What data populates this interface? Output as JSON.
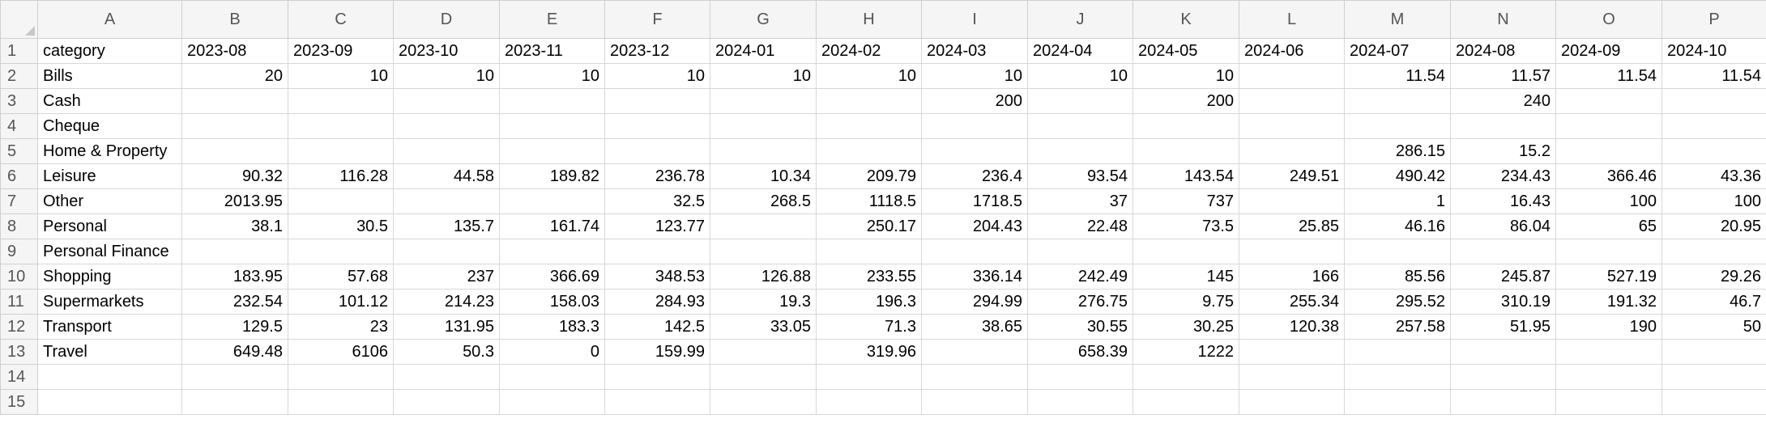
{
  "columns": [
    "A",
    "B",
    "C",
    "D",
    "E",
    "F",
    "G",
    "H",
    "I",
    "J",
    "K",
    "L",
    "M",
    "N",
    "O",
    "P"
  ],
  "row_numbers": [
    "1",
    "2",
    "3",
    "4",
    "5",
    "6",
    "7",
    "8",
    "9",
    "10",
    "11",
    "12",
    "13",
    "14",
    "15"
  ],
  "rows": [
    [
      "category",
      "2023-08",
      "2023-09",
      "2023-10",
      "2023-11",
      "2023-12",
      "2024-01",
      "2024-02",
      "2024-03",
      "2024-04",
      "2024-05",
      "2024-06",
      "2024-07",
      "2024-08",
      "2024-09",
      "2024-10"
    ],
    [
      "Bills",
      "20",
      "10",
      "10",
      "10",
      "10",
      "10",
      "10",
      "10",
      "10",
      "10",
      "",
      "11.54",
      "11.57",
      "11.54",
      "11.54"
    ],
    [
      "Cash",
      "",
      "",
      "",
      "",
      "",
      "",
      "",
      "200",
      "",
      "200",
      "",
      "",
      "240",
      "",
      ""
    ],
    [
      "Cheque",
      "",
      "",
      "",
      "",
      "",
      "",
      "",
      "",
      "",
      "",
      "",
      "",
      "",
      "",
      ""
    ],
    [
      "Home & Property",
      "",
      "",
      "",
      "",
      "",
      "",
      "",
      "",
      "",
      "",
      "",
      "286.15",
      "15.2",
      "",
      ""
    ],
    [
      "Leisure",
      "90.32",
      "116.28",
      "44.58",
      "189.82",
      "236.78",
      "10.34",
      "209.79",
      "236.4",
      "93.54",
      "143.54",
      "249.51",
      "490.42",
      "234.43",
      "366.46",
      "43.36"
    ],
    [
      "Other",
      "2013.95",
      "",
      "",
      "",
      "32.5",
      "268.5",
      "1118.5",
      "1718.5",
      "37",
      "737",
      "",
      "1",
      "16.43",
      "100",
      "100"
    ],
    [
      "Personal",
      "38.1",
      "30.5",
      "135.7",
      "161.74",
      "123.77",
      "",
      "250.17",
      "204.43",
      "22.48",
      "73.5",
      "25.85",
      "46.16",
      "86.04",
      "65",
      "20.95"
    ],
    [
      "Personal Finance",
      "",
      "",
      "",
      "",
      "",
      "",
      "",
      "",
      "",
      "",
      "",
      "",
      "",
      "",
      ""
    ],
    [
      "Shopping",
      "183.95",
      "57.68",
      "237",
      "366.69",
      "348.53",
      "126.88",
      "233.55",
      "336.14",
      "242.49",
      "145",
      "166",
      "85.56",
      "245.87",
      "527.19",
      "29.26"
    ],
    [
      "Supermarkets",
      "232.54",
      "101.12",
      "214.23",
      "158.03",
      "284.93",
      "19.3",
      "196.3",
      "294.99",
      "276.75",
      "9.75",
      "255.34",
      "295.52",
      "310.19",
      "191.32",
      "46.7"
    ],
    [
      "Transport",
      "129.5",
      "23",
      "131.95",
      "183.3",
      "142.5",
      "33.05",
      "71.3",
      "38.65",
      "30.55",
      "30.25",
      "120.38",
      "257.58",
      "51.95",
      "190",
      "50"
    ],
    [
      "Travel",
      "649.48",
      "6106",
      "50.3",
      "0",
      "159.99",
      "",
      "319.96",
      "",
      "658.39",
      "1222",
      "",
      "",
      "",
      "",
      ""
    ],
    [
      "",
      "",
      "",
      "",
      "",
      "",
      "",
      "",
      "",
      "",
      "",
      "",
      "",
      "",
      "",
      ""
    ],
    [
      "",
      "",
      "",
      "",
      "",
      "",
      "",
      "",
      "",
      "",
      "",
      "",
      "",
      "",
      "",
      ""
    ]
  ]
}
